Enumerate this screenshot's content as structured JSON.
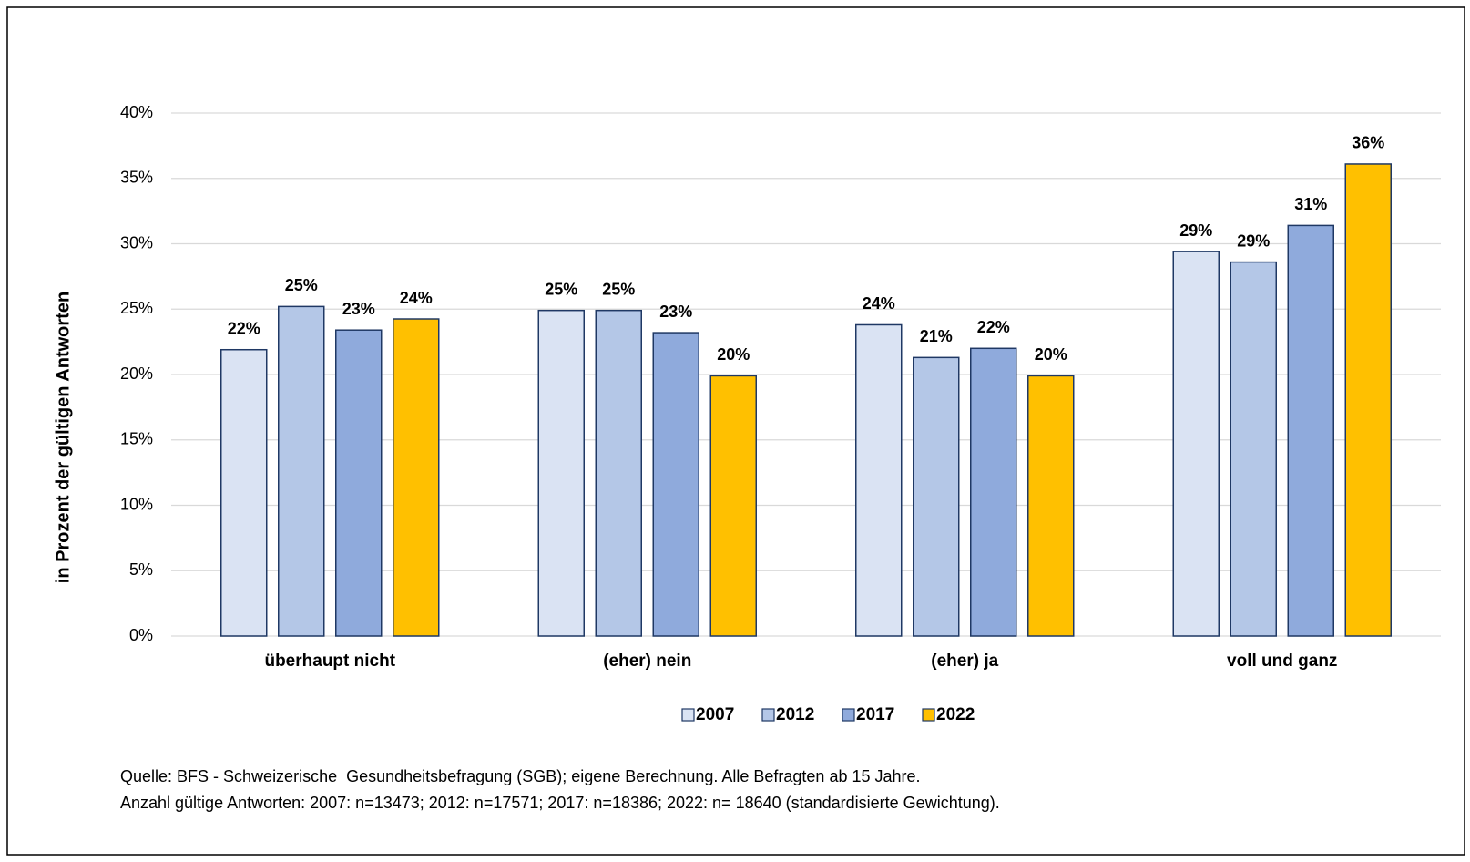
{
  "chart_data": {
    "type": "bar",
    "ylabel": "in Prozent der gültigen Antworten",
    "categories": [
      "überhaupt nicht",
      "(eher) nein",
      "(eher) ja",
      "voll und ganz"
    ],
    "series": [
      {
        "name": "2007",
        "color": "#dae3f3",
        "values": [
          21.9,
          24.9,
          23.8,
          29.4
        ],
        "value_labels": [
          "22%",
          "25%",
          "24%",
          "29%"
        ]
      },
      {
        "name": "2012",
        "color": "#b4c7e7",
        "values": [
          25.2,
          24.9,
          21.3,
          28.6
        ],
        "value_labels": [
          "25%",
          "25%",
          "21%",
          "29%"
        ]
      },
      {
        "name": "2017",
        "color": "#8faadc",
        "values": [
          23.4,
          23.2,
          22.0,
          31.4
        ],
        "value_labels": [
          "23%",
          "23%",
          "22%",
          "31%"
        ]
      },
      {
        "name": "2022",
        "color": "#ffc000",
        "values": [
          24.25,
          19.9,
          19.9,
          36.1
        ],
        "value_labels": [
          "24%",
          "20%",
          "20%",
          "36%"
        ]
      }
    ],
    "ylim": [
      0,
      40
    ],
    "yticks": [
      {
        "value": 0,
        "label": "0%"
      },
      {
        "value": 5,
        "label": "5%"
      },
      {
        "value": 10,
        "label": "10%"
      },
      {
        "value": 15,
        "label": "15%"
      },
      {
        "value": 20,
        "label": "20%"
      },
      {
        "value": 25,
        "label": "25%"
      },
      {
        "value": 30,
        "label": "30%"
      },
      {
        "value": 35,
        "label": "35%"
      },
      {
        "value": 40,
        "label": "40%"
      }
    ],
    "grid": true,
    "legend": "bottom",
    "notes": [
      "Quelle: BFS - Schweizerische  Gesundheitsbefragung (SGB); eigene Berechnung. Alle Befragten ab 15 Jahre.",
      "Anzahl gültige Antworten: 2007: n=13473; 2012: n=17571; 2017: n=18386; 2022: n= 18640 (standardisierte Gewichtung)."
    ]
  }
}
